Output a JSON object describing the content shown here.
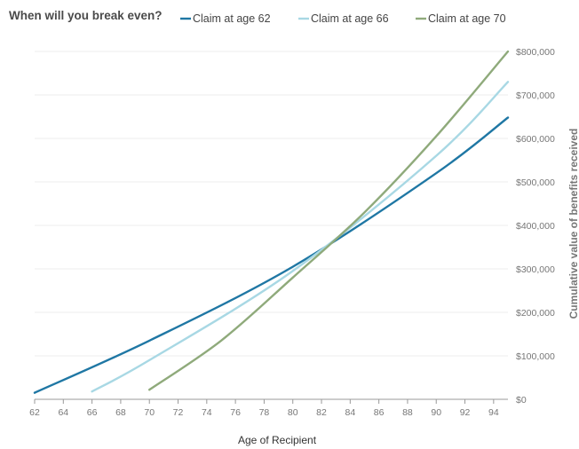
{
  "chart_data": {
    "type": "line",
    "title": "When will you break even?",
    "title_suffix": "?",
    "xlabel": "Age of Recipient",
    "ylabel": "Cumulative value of benefits received",
    "xlim": [
      62,
      95
    ],
    "ylim": [
      0,
      800000
    ],
    "x_ticks": [
      62,
      64,
      66,
      68,
      70,
      72,
      74,
      76,
      78,
      80,
      82,
      84,
      86,
      88,
      90,
      92,
      94
    ],
    "y_ticks": [
      0,
      100000,
      200000,
      300000,
      400000,
      500000,
      600000,
      700000,
      800000
    ],
    "y_tick_labels": [
      "$0",
      "$100,000",
      "$200,000",
      "$300,000",
      "$400,000",
      "$500,000",
      "$600,000",
      "$700,000",
      "$800,000"
    ],
    "grid": true,
    "legend_position": "top",
    "series": [
      {
        "name": "Claim at age 62",
        "color": "#1f77a4",
        "points": [
          [
            62,
            15000
          ],
          [
            70,
            135000
          ],
          [
            80,
            305000
          ],
          [
            90,
            520000
          ],
          [
            95,
            648000
          ]
        ]
      },
      {
        "name": "Claim at age 66",
        "color": "#a8d8e4",
        "points": [
          [
            66,
            18000
          ],
          [
            70,
            90000
          ],
          [
            80,
            295000
          ],
          [
            90,
            560000
          ],
          [
            95,
            730000
          ]
        ]
      },
      {
        "name": "Claim at age 70",
        "color": "#8faa7b",
        "points": [
          [
            70,
            22000
          ],
          [
            75,
            135000
          ],
          [
            80,
            280000
          ],
          [
            85,
            430000
          ],
          [
            90,
            605000
          ],
          [
            95,
            800000
          ]
        ]
      }
    ]
  }
}
